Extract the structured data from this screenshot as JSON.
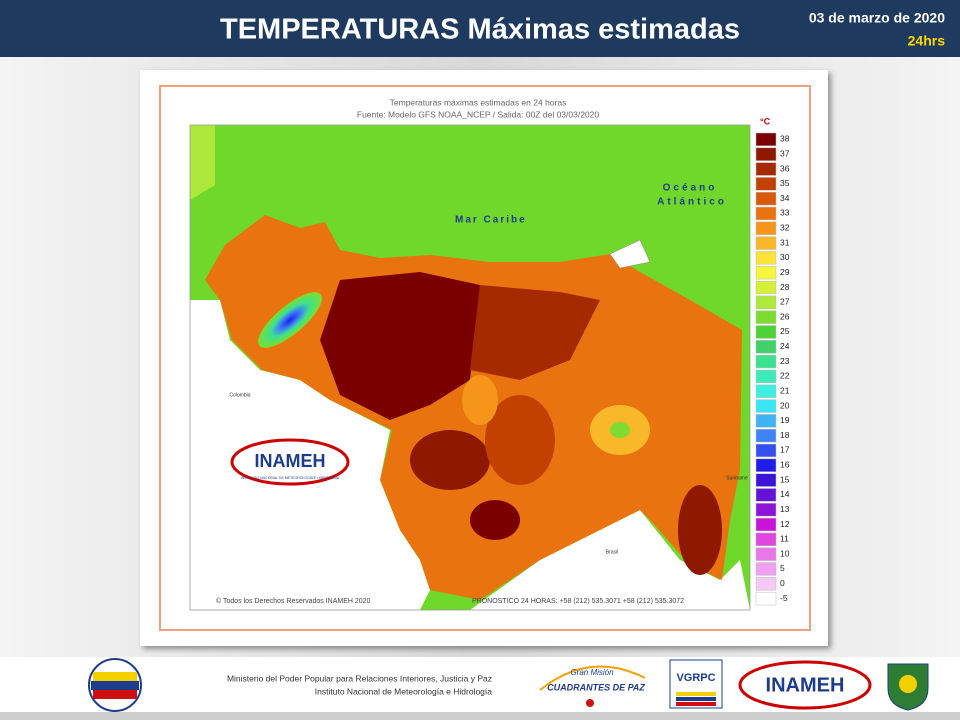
{
  "header": {
    "title": "TEMPERATURAS Máximas estimadas",
    "date": "03 de marzo de 2020",
    "period": "24hrs"
  },
  "map": {
    "title": "Temperaturas máximas estimadas en 24 horas",
    "subtitle": "Fuente: Modelo GFS NOAA_NCEP / Salida: 00Z del 03/03/2020",
    "labels": [
      "Mar Caribe",
      "Océano",
      "Atlántico",
      "Brasil",
      "Suriname",
      "Colombia"
    ],
    "copyright": "© Todos los Derechos Reservados INAMEH 2020",
    "forecast": "PRONOSTICO 24 HORAS: +58 (212) 535.3071 +58 (212) 535.3072",
    "logo": "INAMEH",
    "logo_sub": "INSTITUTO NACIONAL DE METEOROLOGÍA E HIDROLOGÍA"
  },
  "legend": {
    "unit": "°C",
    "items": [
      {
        "label": "38",
        "color": "#7a0000"
      },
      {
        "label": "37",
        "color": "#8e1800"
      },
      {
        "label": "36",
        "color": "#a52a00"
      },
      {
        "label": "35",
        "color": "#c24100"
      },
      {
        "label": "34",
        "color": "#d9590a"
      },
      {
        "label": "33",
        "color": "#e8730f"
      },
      {
        "label": "32",
        "color": "#f5961b"
      },
      {
        "label": "31",
        "color": "#f9b72a"
      },
      {
        "label": "30",
        "color": "#fde23a"
      },
      {
        "label": "29",
        "color": "#f5f53a"
      },
      {
        "label": "28",
        "color": "#d6f03a"
      },
      {
        "label": "27",
        "color": "#aee83a"
      },
      {
        "label": "26",
        "color": "#7ddc2f"
      },
      {
        "label": "25",
        "color": "#4fd236"
      },
      {
        "label": "24",
        "color": "#3fd26a"
      },
      {
        "label": "23",
        "color": "#3ce28f"
      },
      {
        "label": "22",
        "color": "#3eeaba"
      },
      {
        "label": "21",
        "color": "#3ff0e0"
      },
      {
        "label": "20",
        "color": "#3ae6f5"
      },
      {
        "label": "19",
        "color": "#3fb4f5"
      },
      {
        "label": "18",
        "color": "#3f84f5"
      },
      {
        "label": "17",
        "color": "#3550f0"
      },
      {
        "label": "16",
        "color": "#1e1ee8"
      },
      {
        "label": "15",
        "color": "#3c14d8"
      },
      {
        "label": "14",
        "color": "#6414d8"
      },
      {
        "label": "13",
        "color": "#8c14d8"
      },
      {
        "label": "12",
        "color": "#c814d8"
      },
      {
        "label": "11",
        "color": "#e046e0"
      },
      {
        "label": "10",
        "color": "#e878e8"
      },
      {
        "label": "5",
        "color": "#f0a0f0"
      },
      {
        "label": "0",
        "color": "#f5c8f5"
      },
      {
        "label": "-5",
        "color": "#ffffff"
      }
    ]
  },
  "footer": {
    "ministry": "Ministerio del Poder Popular para Relaciones Interiores, Justicia y Paz",
    "institute": "Instituto Nacional de Meteorología e Hidrología",
    "mission_top": "Gran Misión",
    "mission": "CUADRANTES DE PAZ",
    "vgrpc": "VGRPC",
    "inameh": "INAMEH"
  }
}
